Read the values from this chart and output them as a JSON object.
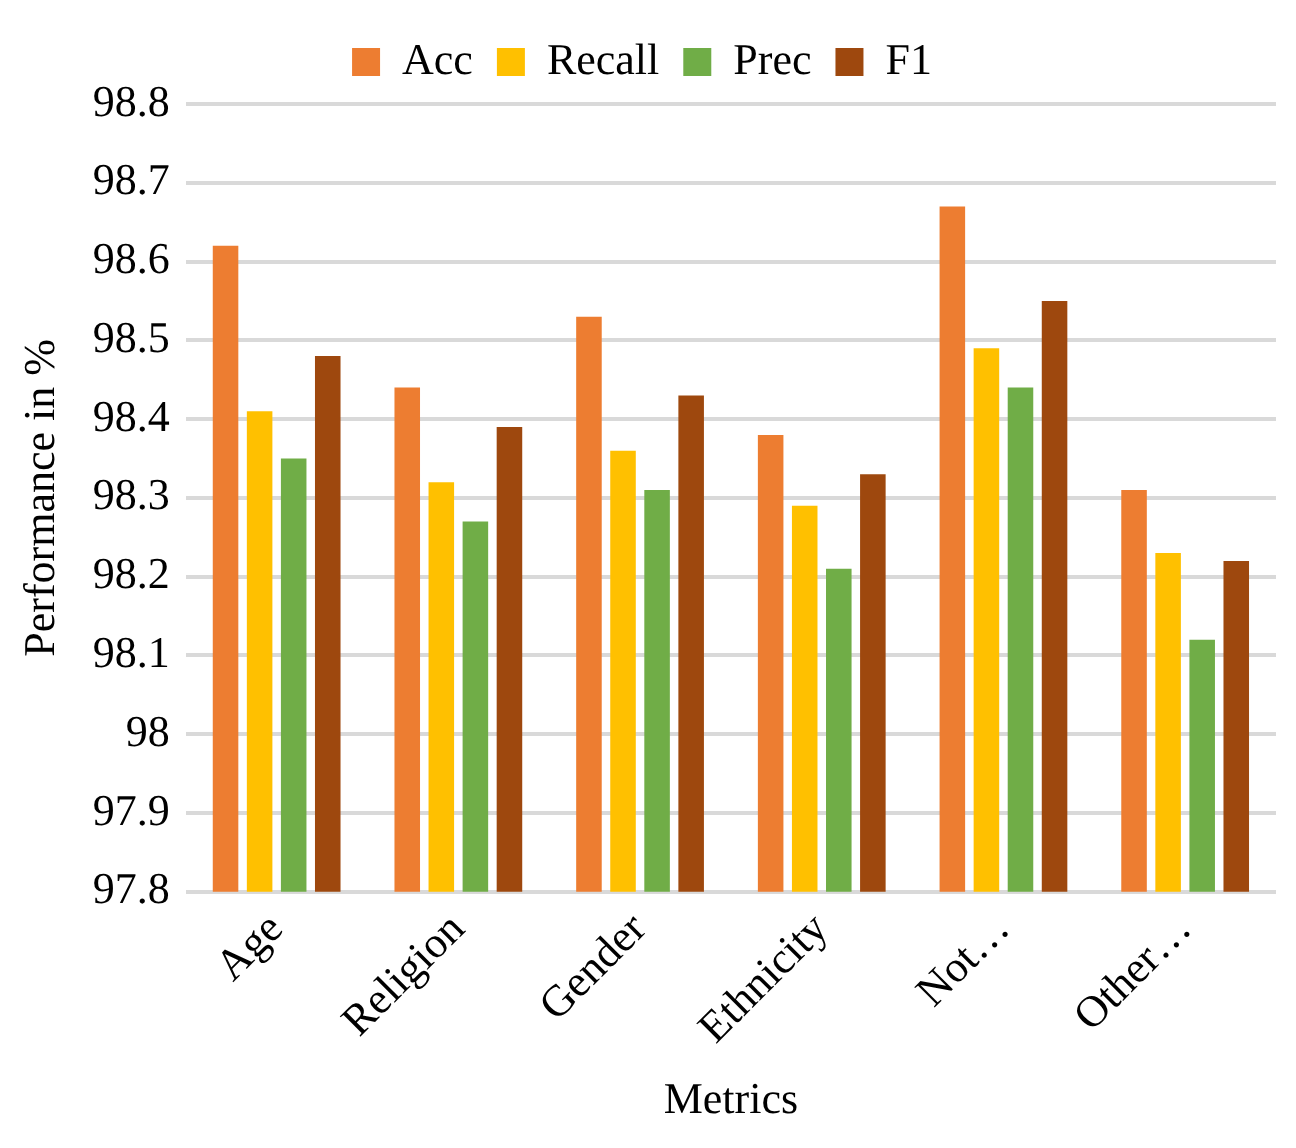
{
  "chart_data": {
    "type": "bar",
    "xlabel": "Metrics",
    "ylabel": "Performance in %",
    "categories": [
      "Age",
      "Religion",
      "Gender",
      "Ethnicity",
      "Not…",
      "Other…"
    ],
    "series": [
      {
        "name": "Acc",
        "color": "#ed7d31",
        "values": [
          98.62,
          98.44,
          98.53,
          98.38,
          98.67,
          98.31
        ]
      },
      {
        "name": "Recall",
        "color": "#ffc000",
        "values": [
          98.41,
          98.32,
          98.36,
          98.29,
          98.49,
          98.23
        ]
      },
      {
        "name": "Prec",
        "color": "#70ad47",
        "values": [
          98.35,
          98.27,
          98.31,
          98.21,
          98.44,
          98.12
        ]
      },
      {
        "name": "F1",
        "color": "#9e480e",
        "values": [
          98.48,
          98.39,
          98.43,
          98.33,
          98.55,
          98.22
        ]
      }
    ],
    "ylim": [
      97.8,
      98.8
    ],
    "yticks": [
      97.8,
      97.9,
      98,
      98.1,
      98.2,
      98.3,
      98.4,
      98.5,
      98.6,
      98.7,
      98.8
    ],
    "grid": "y",
    "legend": "top"
  }
}
